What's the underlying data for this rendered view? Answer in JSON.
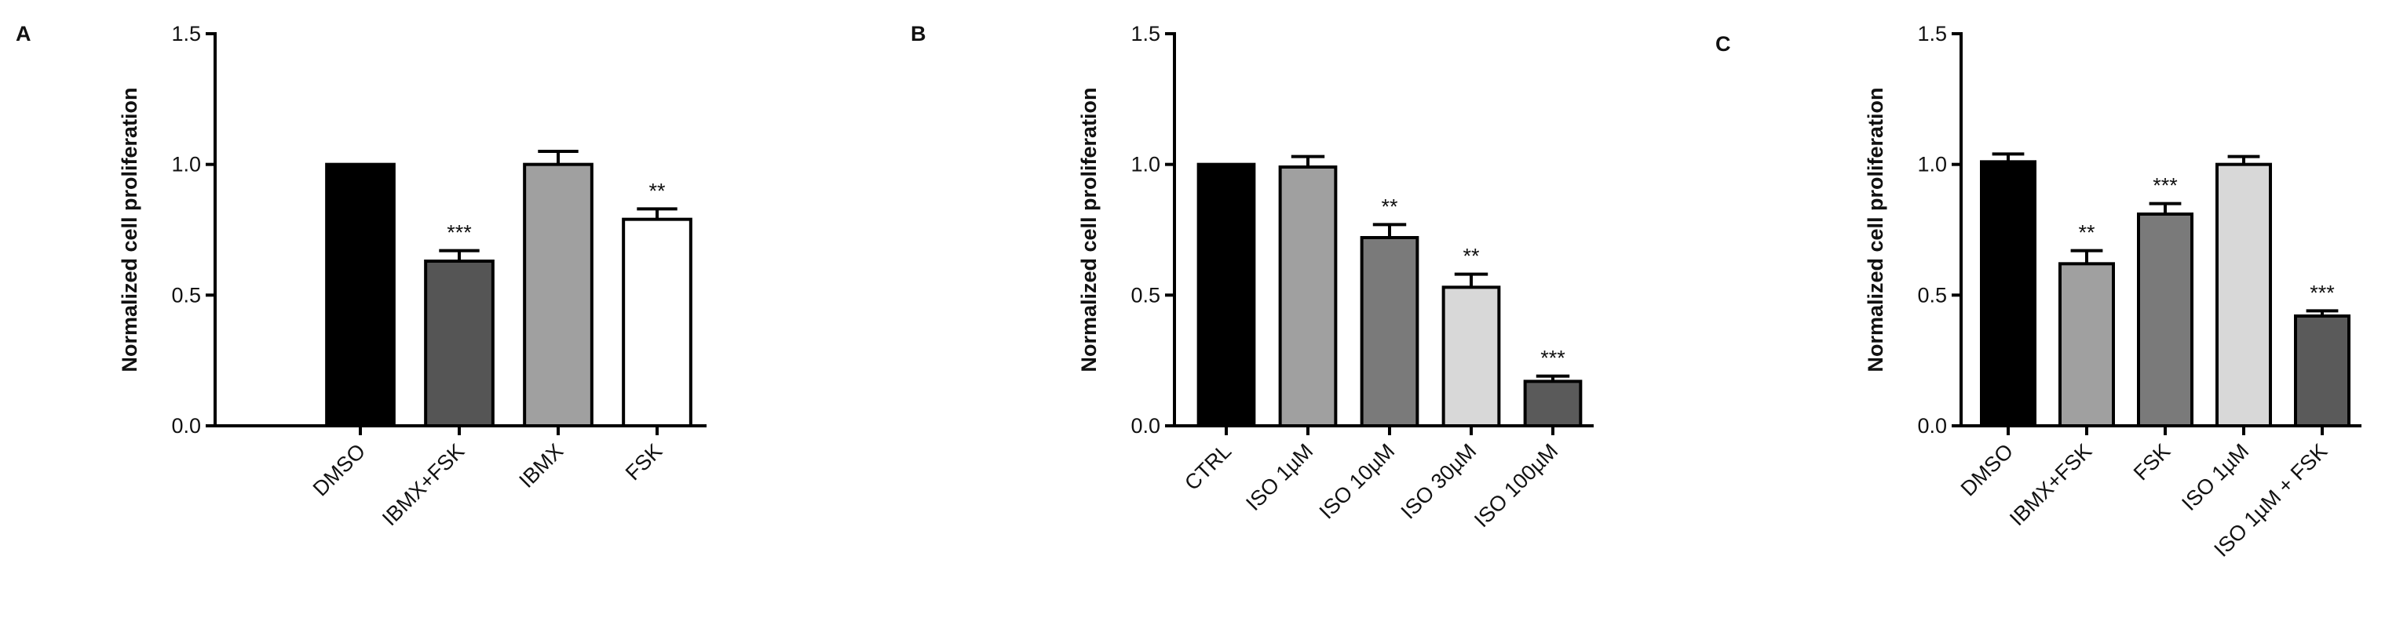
{
  "chart_data": [
    {
      "type": "bar",
      "panel": "A",
      "ylabel": "Normalized cell proliferation",
      "categories": [
        "DMSO",
        "IBMX+FSK",
        "IBMX",
        "FSK"
      ],
      "values": [
        1.0,
        0.63,
        1.0,
        0.79
      ],
      "errors": [
        0,
        0.04,
        0.05,
        0.04
      ],
      "annotations": [
        null,
        "***",
        null,
        "**"
      ],
      "colors": [
        "#000000",
        "#555555",
        "#a0a0a0",
        "#ffffff"
      ],
      "ylim": [
        0,
        1.5
      ],
      "yticks": [
        {
          "value": 0,
          "label": "0.0"
        },
        {
          "value": 0.5,
          "label": "0.5"
        },
        {
          "value": 1,
          "label": "1.0"
        },
        {
          "value": 1.5,
          "label": "1.5"
        }
      ]
    },
    {
      "type": "bar",
      "panel": "B",
      "ylabel": "Normalized cell proliferation",
      "categories": [
        "CTRL",
        "ISO 1µM",
        "ISO 10µM",
        "ISO 30µM",
        "ISO 100µM"
      ],
      "values": [
        1.0,
        0.99,
        0.72,
        0.53,
        0.17
      ],
      "errors": [
        0,
        0.04,
        0.05,
        0.05,
        0.02
      ],
      "annotations": [
        null,
        null,
        "**",
        "**",
        "***"
      ],
      "colors": [
        "#000000",
        "#a0a0a0",
        "#7a7a7a",
        "#d8d8d8",
        "#5a5a5a"
      ],
      "ylim": [
        0,
        1.5
      ],
      "yticks": [
        {
          "value": 0,
          "label": "0.0"
        },
        {
          "value": 0.5,
          "label": "0.5"
        },
        {
          "value": 1,
          "label": "1.0"
        },
        {
          "value": 1.5,
          "label": "1.5"
        }
      ]
    },
    {
      "type": "bar",
      "panel": "C",
      "ylabel": "Normalized cell proliferation",
      "categories": [
        "DMSO",
        "IBMX+FSK",
        "FSK",
        "ISO 1µM",
        "ISO 1µM + FSK"
      ],
      "values": [
        1.01,
        0.62,
        0.81,
        1.0,
        0.42
      ],
      "errors": [
        0.03,
        0.05,
        0.04,
        0.03,
        0.02
      ],
      "annotations": [
        null,
        "**",
        "***",
        null,
        "***"
      ],
      "colors": [
        "#000000",
        "#a0a0a0",
        "#7a7a7a",
        "#d8d8d8",
        "#5a5a5a"
      ],
      "ylim": [
        0,
        1.5
      ],
      "yticks": [
        {
          "value": 0,
          "label": "0.0"
        },
        {
          "value": 0.5,
          "label": "0.5"
        },
        {
          "value": 1,
          "label": "1.0"
        },
        {
          "value": 1.5,
          "label": "1.5"
        }
      ]
    }
  ]
}
